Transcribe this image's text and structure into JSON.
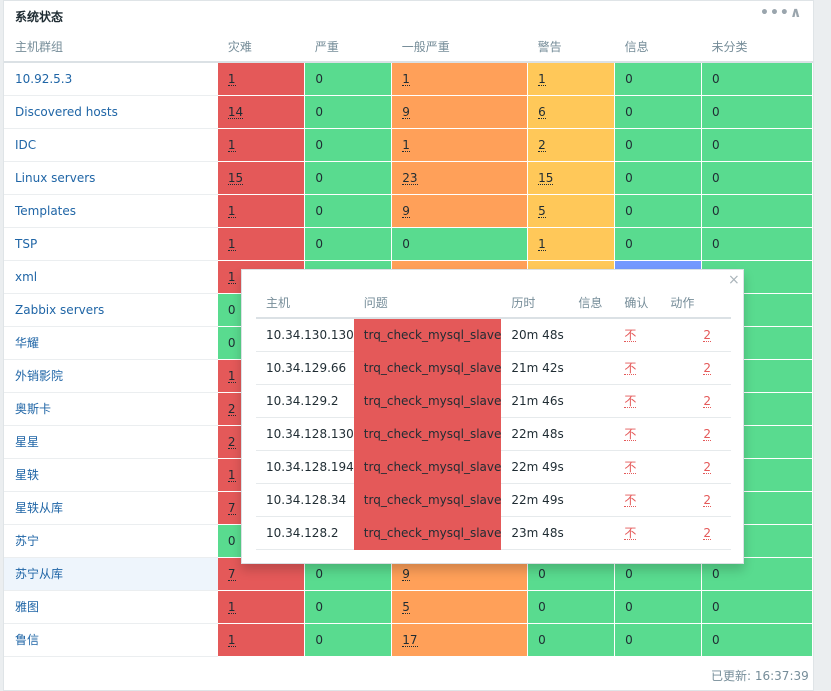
{
  "widget": {
    "title": "系统状态",
    "updated_label": "已更新: 16:37:39"
  },
  "columns": {
    "group": "主机群组",
    "disaster": "灾难",
    "high": "严重",
    "average": "一般严重",
    "warning": "警告",
    "info": "信息",
    "not_classified": "未分类"
  },
  "colors": {
    "disaster": "#e45959",
    "average": "#ffa059",
    "warning": "#ffc859",
    "info": "#7499ff",
    "ok": "#59db8f"
  },
  "rows": [
    {
      "group": "10.92.5.3",
      "v": [
        "1",
        "0",
        "1",
        "1",
        "0",
        "0"
      ]
    },
    {
      "group": "Discovered hosts",
      "v": [
        "14",
        "0",
        "9",
        "6",
        "0",
        "0"
      ]
    },
    {
      "group": "IDC",
      "v": [
        "1",
        "0",
        "1",
        "2",
        "0",
        "0"
      ]
    },
    {
      "group": "Linux servers",
      "v": [
        "15",
        "0",
        "23",
        "15",
        "0",
        "0"
      ]
    },
    {
      "group": "Templates",
      "v": [
        "1",
        "0",
        "9",
        "5",
        "0",
        "0"
      ]
    },
    {
      "group": "TSP",
      "v": [
        "1",
        "0",
        "0",
        "1",
        "0",
        "0"
      ]
    },
    {
      "group": "xml",
      "v": [
        "1",
        "",
        "",
        "",
        "",
        ""
      ]
    },
    {
      "group": "Zabbix servers",
      "v": [
        "0",
        "",
        "",
        "",
        "",
        ""
      ]
    },
    {
      "group": "华耀",
      "v": [
        "0",
        "",
        "",
        "",
        "",
        ""
      ]
    },
    {
      "group": "外销影院",
      "v": [
        "1",
        "",
        "",
        "",
        "",
        ""
      ]
    },
    {
      "group": "奥斯卡",
      "v": [
        "2",
        "",
        "",
        "",
        "",
        ""
      ]
    },
    {
      "group": "星星",
      "v": [
        "2",
        "",
        "",
        "",
        "",
        ""
      ]
    },
    {
      "group": "星轶",
      "v": [
        "1",
        "",
        "",
        "",
        "",
        ""
      ]
    },
    {
      "group": "星轶从库",
      "v": [
        "7",
        "",
        "",
        "",
        "",
        ""
      ]
    },
    {
      "group": "苏宁",
      "v": [
        "0",
        "",
        "",
        "",
        "",
        ""
      ]
    },
    {
      "group": "苏宁从库",
      "v": [
        "7",
        "0",
        "9",
        "0",
        "0",
        "0"
      ]
    },
    {
      "group": "雅图",
      "v": [
        "1",
        "0",
        "5",
        "0",
        "0",
        "0"
      ]
    },
    {
      "group": "鲁信",
      "v": [
        "1",
        "0",
        "17",
        "0",
        "0",
        "0"
      ]
    }
  ],
  "popup": {
    "columns": {
      "host": "主机",
      "problem": "问题",
      "duration": "历时",
      "info": "信息",
      "ack": "确认",
      "actions": "动作"
    },
    "close_icon": "×",
    "rows": [
      {
        "host": "10.34.130.130",
        "problem": "trq_check_mysql_slave",
        "duration": "20m 48s",
        "info": "",
        "ack": "不",
        "actions": "2"
      },
      {
        "host": "10.34.129.66",
        "problem": "trq_check_mysql_slave",
        "duration": "21m 42s",
        "info": "",
        "ack": "不",
        "actions": "2"
      },
      {
        "host": "10.34.129.2",
        "problem": "trq_check_mysql_slave",
        "duration": "21m 46s",
        "info": "",
        "ack": "不",
        "actions": "2"
      },
      {
        "host": "10.34.128.130",
        "problem": "trq_check_mysql_slave",
        "duration": "22m 48s",
        "info": "",
        "ack": "不",
        "actions": "2"
      },
      {
        "host": "10.34.128.194",
        "problem": "trq_check_mysql_slave",
        "duration": "22m 49s",
        "info": "",
        "ack": "不",
        "actions": "2"
      },
      {
        "host": "10.34.128.34",
        "problem": "trq_check_mysql_slave",
        "duration": "22m 49s",
        "info": "",
        "ack": "不",
        "actions": "2"
      },
      {
        "host": "10.34.128.2",
        "problem": "trq_check_mysql_slave",
        "duration": "23m 48s",
        "info": "",
        "ack": "不",
        "actions": "2"
      }
    ]
  }
}
